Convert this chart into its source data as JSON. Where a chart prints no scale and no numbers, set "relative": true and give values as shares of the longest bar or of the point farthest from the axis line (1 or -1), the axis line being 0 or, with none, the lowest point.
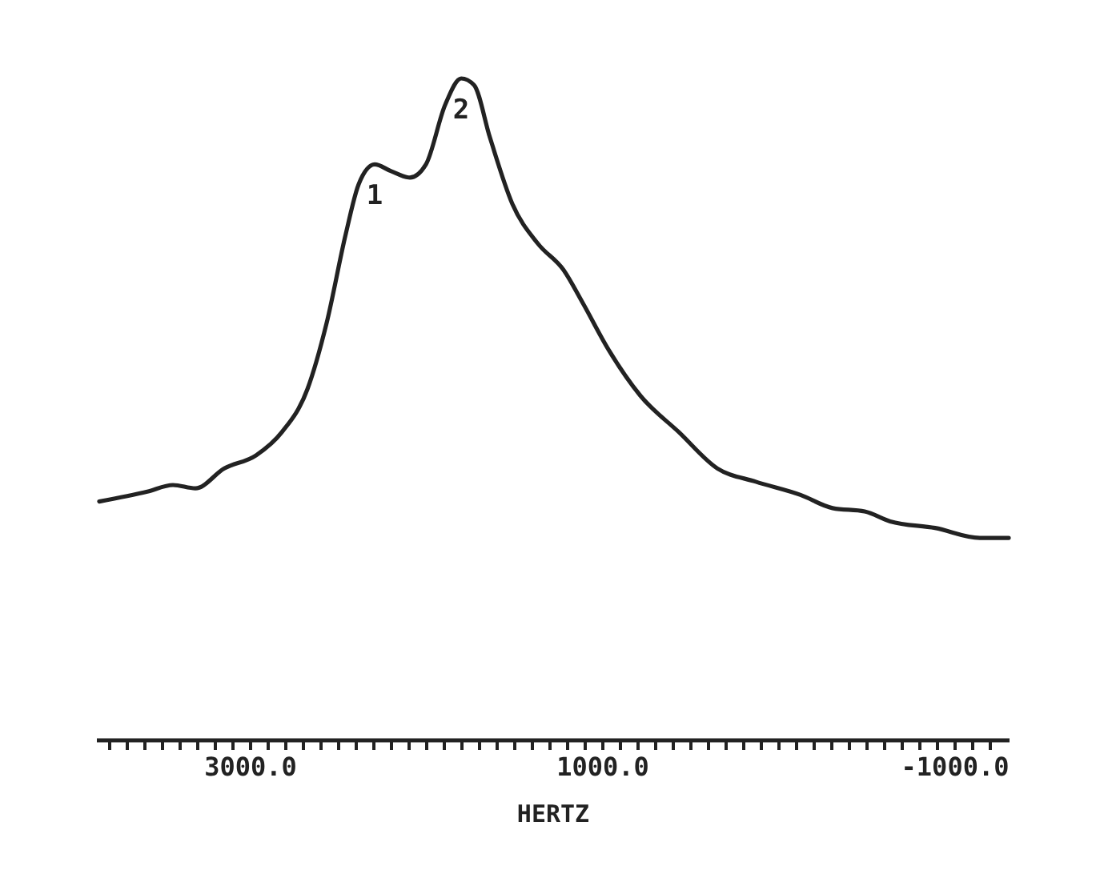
{
  "chart_data": {
    "type": "line",
    "relative": true,
    "xlabel": "HERTZ",
    "xlim": [
      3873,
      -1309
    ],
    "xticks": [
      {
        "value": 3800,
        "label": null
      },
      {
        "value": 3700,
        "label": null
      },
      {
        "value": 3600,
        "label": null
      },
      {
        "value": 3500,
        "label": null
      },
      {
        "value": 3400,
        "label": null
      },
      {
        "value": 3300,
        "label": null
      },
      {
        "value": 3200,
        "label": null
      },
      {
        "value": 3100,
        "label": null
      },
      {
        "value": 3000,
        "label": "3000.0"
      },
      {
        "value": 2900,
        "label": null
      },
      {
        "value": 2800,
        "label": null
      },
      {
        "value": 2700,
        "label": null
      },
      {
        "value": 2600,
        "label": null
      },
      {
        "value": 2500,
        "label": null
      },
      {
        "value": 2400,
        "label": null
      },
      {
        "value": 2300,
        "label": null
      },
      {
        "value": 2200,
        "label": null
      },
      {
        "value": 2100,
        "label": null
      },
      {
        "value": 2000,
        "label": null
      },
      {
        "value": 1900,
        "label": null
      },
      {
        "value": 1800,
        "label": null
      },
      {
        "value": 1700,
        "label": null
      },
      {
        "value": 1600,
        "label": null
      },
      {
        "value": 1500,
        "label": null
      },
      {
        "value": 1400,
        "label": null
      },
      {
        "value": 1300,
        "label": null
      },
      {
        "value": 1200,
        "label": null
      },
      {
        "value": 1100,
        "label": null
      },
      {
        "value": 1000,
        "label": "1000.0"
      },
      {
        "value": 900,
        "label": null
      },
      {
        "value": 800,
        "label": null
      },
      {
        "value": 700,
        "label": null
      },
      {
        "value": 600,
        "label": null
      },
      {
        "value": 500,
        "label": null
      },
      {
        "value": 400,
        "label": null
      },
      {
        "value": 300,
        "label": null
      },
      {
        "value": 200,
        "label": null
      },
      {
        "value": 100,
        "label": null
      },
      {
        "value": 0,
        "label": null
      },
      {
        "value": -100,
        "label": null
      },
      {
        "value": -200,
        "label": null
      },
      {
        "value": -300,
        "label": null
      },
      {
        "value": -400,
        "label": null
      },
      {
        "value": -500,
        "label": null
      },
      {
        "value": -600,
        "label": null
      },
      {
        "value": -700,
        "label": null
      },
      {
        "value": -800,
        "label": null
      },
      {
        "value": -900,
        "label": null
      },
      {
        "value": -1000,
        "label": "-1000.0"
      },
      {
        "value": -1100,
        "label": null
      },
      {
        "value": -1200,
        "label": null
      }
    ],
    "x": [
      3855,
      3582,
      3436,
      3309,
      3145,
      2964,
      2818,
      2673,
      2564,
      2455,
      2382,
      2291,
      2200,
      2091,
      2000,
      1891,
      1800,
      1727,
      1636,
      1509,
      1364,
      1218,
      1109,
      964,
      782,
      564,
      345,
      127,
      -127,
      -309,
      -491,
      -636,
      -891,
      -1145,
      -1309
    ],
    "series": [
      {
        "color": "#222222",
        "values": [
          0.36,
          0.375,
          0.385,
          0.38,
          0.41,
          0.43,
          0.465,
          0.53,
          0.63,
          0.765,
          0.84,
          0.87,
          0.86,
          0.85,
          0.87,
          0.96,
          1,
          0.99,
          0.91,
          0.81,
          0.75,
          0.71,
          0.66,
          0.59,
          0.52,
          0.465,
          0.41,
          0.39,
          0.37,
          0.35,
          0.345,
          0.33,
          0.32,
          0.305,
          0.305
        ]
      }
    ],
    "annotations": [
      {
        "text": "1",
        "x": 2291,
        "y": 0.87
      },
      {
        "text": "2",
        "x": 1800,
        "y": 1
      }
    ],
    "grid": false
  }
}
